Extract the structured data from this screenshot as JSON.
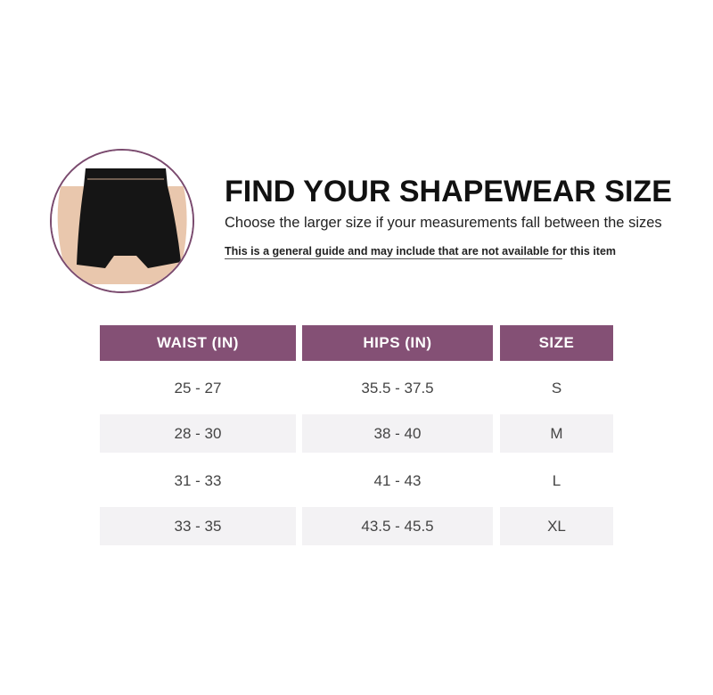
{
  "header": {
    "title": "FIND YOUR SHAPEWEAR SIZE",
    "subtitle": "Choose the larger size if your measurements fall between the sizes",
    "note_underlined": "This is a general guide and may include that are not available fo",
    "note_rest": "r this item"
  },
  "table": {
    "columns": [
      "WAIST (IN)",
      "HIPS (IN)",
      "SIZE"
    ],
    "rows": [
      [
        "25 - 27",
        "35.5 - 37.5",
        "S"
      ],
      [
        "28 - 30",
        "38 - 40",
        "M"
      ],
      [
        "31 - 33",
        "41 - 43",
        "L"
      ],
      [
        "33 - 35",
        "43.5 - 45.5",
        "XL"
      ]
    ]
  },
  "colors": {
    "header_bg": "#845075",
    "stripe": "#f3f2f4",
    "circle_border": "#7a4a6e"
  }
}
